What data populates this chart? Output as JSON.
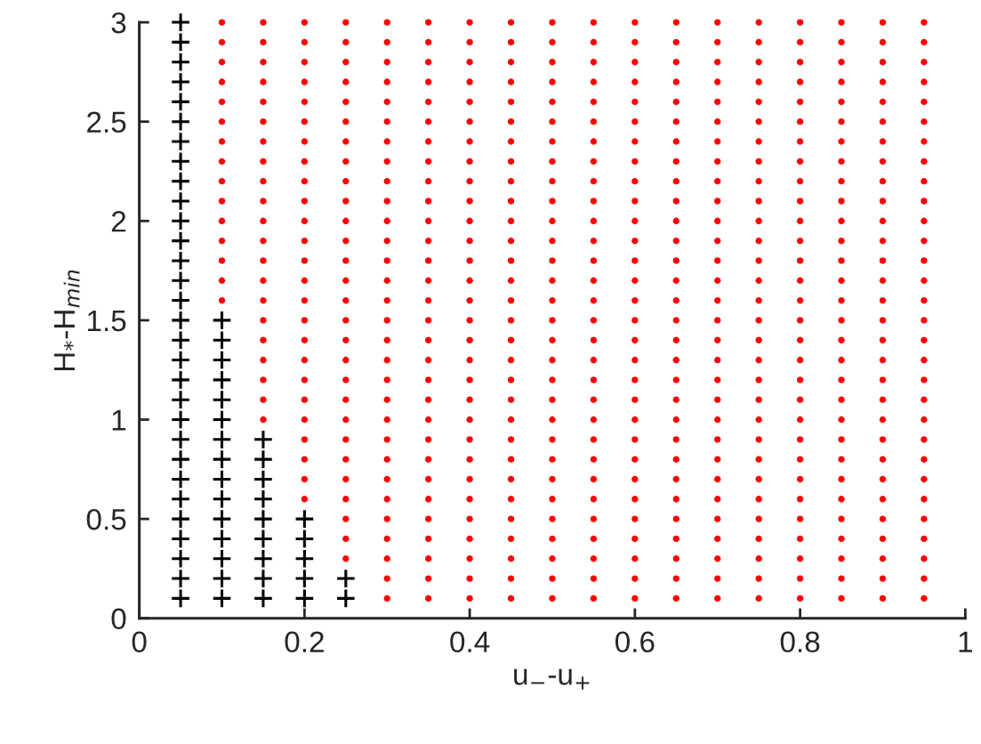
{
  "chart_data": {
    "type": "scatter",
    "xlabel": "u$_{−}$-u$_{+}$",
    "ylabel": "H$_{*}$-H$_{min}$",
    "xlim": [
      0,
      1
    ],
    "xticks": [
      0,
      0.2,
      0.4,
      0.6,
      0.8,
      1
    ],
    "ylim": [
      0,
      3
    ],
    "yticks": [
      0,
      0.5,
      1,
      1.5,
      2,
      2.5,
      3
    ],
    "grid": false,
    "legend": false,
    "series": [
      {
        "marker": "cross",
        "color": "#000000",
        "x": [
          0.05,
          0.05,
          0.05,
          0.05,
          0.05,
          0.05,
          0.05,
          0.05,
          0.05,
          0.05,
          0.05,
          0.05,
          0.05,
          0.05,
          0.05,
          0.05,
          0.05,
          0.05,
          0.05,
          0.05,
          0.05,
          0.05,
          0.05,
          0.05,
          0.05,
          0.05,
          0.05,
          0.05,
          0.05,
          0.05,
          0.1,
          0.1,
          0.1,
          0.1,
          0.1,
          0.1,
          0.1,
          0.1,
          0.1,
          0.1,
          0.1,
          0.1,
          0.1,
          0.1,
          0.1,
          0.15,
          0.15,
          0.15,
          0.15,
          0.15,
          0.15,
          0.15,
          0.15,
          0.15,
          0.2,
          0.2,
          0.2,
          0.2,
          0.2,
          0.25,
          0.25
        ],
        "values": [
          0.1,
          0.2,
          0.3,
          0.4,
          0.5,
          0.6,
          0.7,
          0.8,
          0.9,
          1,
          1.1,
          1.2,
          1.3,
          1.4,
          1.5,
          1.6,
          1.7,
          1.8,
          1.9,
          2,
          2.1,
          2.2,
          2.3,
          2.4,
          2.5,
          2.6,
          2.7,
          2.8,
          2.9,
          3,
          0.1,
          0.2,
          0.3,
          0.4,
          0.5,
          0.6,
          0.7,
          0.8,
          0.9,
          1,
          1.1,
          1.2,
          1.3,
          1.4,
          1.5,
          0.1,
          0.2,
          0.3,
          0.4,
          0.5,
          0.6,
          0.7,
          0.8,
          0.9,
          0.1,
          0.2,
          0.3,
          0.4,
          0.5,
          0.1,
          0.2
        ]
      },
      {
        "marker": "circle",
        "color": "#ff0000",
        "x": [
          0.1,
          0.1,
          0.1,
          0.1,
          0.1,
          0.1,
          0.1,
          0.1,
          0.1,
          0.1,
          0.1,
          0.1,
          0.1,
          0.1,
          0.1,
          0.15,
          0.15,
          0.15,
          0.15,
          0.15,
          0.15,
          0.15,
          0.15,
          0.15,
          0.15,
          0.15,
          0.15,
          0.15,
          0.15,
          0.15,
          0.15,
          0.15,
          0.15,
          0.15,
          0.15,
          0.15,
          0.2,
          0.2,
          0.2,
          0.2,
          0.2,
          0.2,
          0.2,
          0.2,
          0.2,
          0.2,
          0.2,
          0.2,
          0.2,
          0.2,
          0.2,
          0.2,
          0.2,
          0.2,
          0.2,
          0.2,
          0.2,
          0.2,
          0.2,
          0.2,
          0.2,
          0.25,
          0.25,
          0.25,
          0.25,
          0.25,
          0.25,
          0.25,
          0.25,
          0.25,
          0.25,
          0.25,
          0.25,
          0.25,
          0.25,
          0.25,
          0.25,
          0.25,
          0.25,
          0.25,
          0.25,
          0.25,
          0.25,
          0.25,
          0.25,
          0.25,
          0.25,
          0.25,
          0.25,
          0.3,
          0.3,
          0.3,
          0.3,
          0.3,
          0.3,
          0.3,
          0.3,
          0.3,
          0.3,
          0.3,
          0.3,
          0.3,
          0.3,
          0.3,
          0.3,
          0.3,
          0.3,
          0.3,
          0.3,
          0.3,
          0.3,
          0.3,
          0.3,
          0.3,
          0.3,
          0.3,
          0.3,
          0.3,
          0.3,
          0.35,
          0.35,
          0.35,
          0.35,
          0.35,
          0.35,
          0.35,
          0.35,
          0.35,
          0.35,
          0.35,
          0.35,
          0.35,
          0.35,
          0.35,
          0.35,
          0.35,
          0.35,
          0.35,
          0.35,
          0.35,
          0.35,
          0.35,
          0.35,
          0.35,
          0.35,
          0.35,
          0.35,
          0.35,
          0.35,
          0.4,
          0.4,
          0.4,
          0.4,
          0.4,
          0.4,
          0.4,
          0.4,
          0.4,
          0.4,
          0.4,
          0.4,
          0.4,
          0.4,
          0.4,
          0.4,
          0.4,
          0.4,
          0.4,
          0.4,
          0.4,
          0.4,
          0.4,
          0.4,
          0.4,
          0.4,
          0.4,
          0.4,
          0.4,
          0.4,
          0.45,
          0.45,
          0.45,
          0.45,
          0.45,
          0.45,
          0.45,
          0.45,
          0.45,
          0.45,
          0.45,
          0.45,
          0.45,
          0.45,
          0.45,
          0.45,
          0.45,
          0.45,
          0.45,
          0.45,
          0.45,
          0.45,
          0.45,
          0.45,
          0.45,
          0.45,
          0.45,
          0.45,
          0.45,
          0.45,
          0.5,
          0.5,
          0.5,
          0.5,
          0.5,
          0.5,
          0.5,
          0.5,
          0.5,
          0.5,
          0.5,
          0.5,
          0.5,
          0.5,
          0.5,
          0.5,
          0.5,
          0.5,
          0.5,
          0.5,
          0.5,
          0.5,
          0.5,
          0.5,
          0.5,
          0.5,
          0.5,
          0.5,
          0.5,
          0.5,
          0.55,
          0.55,
          0.55,
          0.55,
          0.55,
          0.55,
          0.55,
          0.55,
          0.55,
          0.55,
          0.55,
          0.55,
          0.55,
          0.55,
          0.55,
          0.55,
          0.55,
          0.55,
          0.55,
          0.55,
          0.55,
          0.55,
          0.55,
          0.55,
          0.55,
          0.55,
          0.55,
          0.55,
          0.55,
          0.55,
          0.6,
          0.6,
          0.6,
          0.6,
          0.6,
          0.6,
          0.6,
          0.6,
          0.6,
          0.6,
          0.6,
          0.6,
          0.6,
          0.6,
          0.6,
          0.6,
          0.6,
          0.6,
          0.6,
          0.6,
          0.6,
          0.6,
          0.6,
          0.6,
          0.6,
          0.6,
          0.6,
          0.6,
          0.6,
          0.6,
          0.65,
          0.65,
          0.65,
          0.65,
          0.65,
          0.65,
          0.65,
          0.65,
          0.65,
          0.65,
          0.65,
          0.65,
          0.65,
          0.65,
          0.65,
          0.65,
          0.65,
          0.65,
          0.65,
          0.65,
          0.65,
          0.65,
          0.65,
          0.65,
          0.65,
          0.65,
          0.65,
          0.65,
          0.65,
          0.65,
          0.7,
          0.7,
          0.7,
          0.7,
          0.7,
          0.7,
          0.7,
          0.7,
          0.7,
          0.7,
          0.7,
          0.7,
          0.7,
          0.7,
          0.7,
          0.7,
          0.7,
          0.7,
          0.7,
          0.7,
          0.7,
          0.7,
          0.7,
          0.7,
          0.7,
          0.7,
          0.7,
          0.7,
          0.7,
          0.7,
          0.75,
          0.75,
          0.75,
          0.75,
          0.75,
          0.75,
          0.75,
          0.75,
          0.75,
          0.75,
          0.75,
          0.75,
          0.75,
          0.75,
          0.75,
          0.75,
          0.75,
          0.75,
          0.75,
          0.75,
          0.75,
          0.75,
          0.75,
          0.75,
          0.75,
          0.75,
          0.75,
          0.75,
          0.75,
          0.75,
          0.8,
          0.8,
          0.8,
          0.8,
          0.8,
          0.8,
          0.8,
          0.8,
          0.8,
          0.8,
          0.8,
          0.8,
          0.8,
          0.8,
          0.8,
          0.8,
          0.8,
          0.8,
          0.8,
          0.8,
          0.8,
          0.8,
          0.8,
          0.8,
          0.8,
          0.8,
          0.8,
          0.8,
          0.8,
          0.8,
          0.85,
          0.85,
          0.85,
          0.85,
          0.85,
          0.85,
          0.85,
          0.85,
          0.85,
          0.85,
          0.85,
          0.85,
          0.85,
          0.85,
          0.85,
          0.85,
          0.85,
          0.85,
          0.85,
          0.85,
          0.85,
          0.85,
          0.85,
          0.85,
          0.85,
          0.85,
          0.85,
          0.85,
          0.85,
          0.85,
          0.9,
          0.9,
          0.9,
          0.9,
          0.9,
          0.9,
          0.9,
          0.9,
          0.9,
          0.9,
          0.9,
          0.9,
          0.9,
          0.9,
          0.9,
          0.9,
          0.9,
          0.9,
          0.9,
          0.9,
          0.9,
          0.9,
          0.9,
          0.9,
          0.9,
          0.9,
          0.9,
          0.9,
          0.9,
          0.9,
          0.95,
          0.95,
          0.95,
          0.95,
          0.95,
          0.95,
          0.95,
          0.95,
          0.95,
          0.95,
          0.95,
          0.95,
          0.95,
          0.95,
          0.95,
          0.95,
          0.95,
          0.95,
          0.95,
          0.95,
          0.95,
          0.95,
          0.95,
          0.95,
          0.95,
          0.95,
          0.95,
          0.95,
          0.95,
          0.95
        ],
        "values": [
          1.6,
          1.7,
          1.8,
          1.9,
          2,
          2.1,
          2.2,
          2.3,
          2.4,
          2.5,
          2.6,
          2.7,
          2.8,
          2.9,
          3,
          1,
          1.1,
          1.2,
          1.3,
          1.4,
          1.5,
          1.6,
          1.7,
          1.8,
          1.9,
          2,
          2.1,
          2.2,
          2.3,
          2.4,
          2.5,
          2.6,
          2.7,
          2.8,
          2.9,
          3,
          0.6,
          0.7,
          0.8,
          0.9,
          1,
          1.1,
          1.2,
          1.3,
          1.4,
          1.5,
          1.6,
          1.7,
          1.8,
          1.9,
          2,
          2.1,
          2.2,
          2.3,
          2.4,
          2.5,
          2.6,
          2.7,
          2.8,
          2.9,
          3,
          0.3,
          0.4,
          0.5,
          0.6,
          0.7,
          0.8,
          0.9,
          1,
          1.1,
          1.2,
          1.3,
          1.4,
          1.5,
          1.6,
          1.7,
          1.8,
          1.9,
          2,
          2.1,
          2.2,
          2.3,
          2.4,
          2.5,
          2.6,
          2.7,
          2.8,
          2.9,
          3,
          0.1,
          0.2,
          0.3,
          0.4,
          0.5,
          0.6,
          0.7,
          0.8,
          0.9,
          1,
          1.1,
          1.2,
          1.3,
          1.4,
          1.5,
          1.6,
          1.7,
          1.8,
          1.9,
          2,
          2.1,
          2.2,
          2.3,
          2.4,
          2.5,
          2.6,
          2.7,
          2.8,
          2.9,
          3,
          0.1,
          0.2,
          0.3,
          0.4,
          0.5,
          0.6,
          0.7,
          0.8,
          0.9,
          1,
          1.1,
          1.2,
          1.3,
          1.4,
          1.5,
          1.6,
          1.7,
          1.8,
          1.9,
          2,
          2.1,
          2.2,
          2.3,
          2.4,
          2.5,
          2.6,
          2.7,
          2.8,
          2.9,
          3,
          0.1,
          0.2,
          0.3,
          0.4,
          0.5,
          0.6,
          0.7,
          0.8,
          0.9,
          1,
          1.1,
          1.2,
          1.3,
          1.4,
          1.5,
          1.6,
          1.7,
          1.8,
          1.9,
          2,
          2.1,
          2.2,
          2.3,
          2.4,
          2.5,
          2.6,
          2.7,
          2.8,
          2.9,
          3,
          0.1,
          0.2,
          0.3,
          0.4,
          0.5,
          0.6,
          0.7,
          0.8,
          0.9,
          1,
          1.1,
          1.2,
          1.3,
          1.4,
          1.5,
          1.6,
          1.7,
          1.8,
          1.9,
          2,
          2.1,
          2.2,
          2.3,
          2.4,
          2.5,
          2.6,
          2.7,
          2.8,
          2.9,
          3,
          0.1,
          0.2,
          0.3,
          0.4,
          0.5,
          0.6,
          0.7,
          0.8,
          0.9,
          1,
          1.1,
          1.2,
          1.3,
          1.4,
          1.5,
          1.6,
          1.7,
          1.8,
          1.9,
          2,
          2.1,
          2.2,
          2.3,
          2.4,
          2.5,
          2.6,
          2.7,
          2.8,
          2.9,
          3,
          0.1,
          0.2,
          0.3,
          0.4,
          0.5,
          0.6,
          0.7,
          0.8,
          0.9,
          1,
          1.1,
          1.2,
          1.3,
          1.4,
          1.5,
          1.6,
          1.7,
          1.8,
          1.9,
          2,
          2.1,
          2.2,
          2.3,
          2.4,
          2.5,
          2.6,
          2.7,
          2.8,
          2.9,
          3,
          0.1,
          0.2,
          0.3,
          0.4,
          0.5,
          0.6,
          0.7,
          0.8,
          0.9,
          1,
          1.1,
          1.2,
          1.3,
          1.4,
          1.5,
          1.6,
          1.7,
          1.8,
          1.9,
          2,
          2.1,
          2.2,
          2.3,
          2.4,
          2.5,
          2.6,
          2.7,
          2.8,
          2.9,
          3,
          0.1,
          0.2,
          0.3,
          0.4,
          0.5,
          0.6,
          0.7,
          0.8,
          0.9,
          1,
          1.1,
          1.2,
          1.3,
          1.4,
          1.5,
          1.6,
          1.7,
          1.8,
          1.9,
          2,
          2.1,
          2.2,
          2.3,
          2.4,
          2.5,
          2.6,
          2.7,
          2.8,
          2.9,
          3,
          0.1,
          0.2,
          0.3,
          0.4,
          0.5,
          0.6,
          0.7,
          0.8,
          0.9,
          1,
          1.1,
          1.2,
          1.3,
          1.4,
          1.5,
          1.6,
          1.7,
          1.8,
          1.9,
          2,
          2.1,
          2.2,
          2.3,
          2.4,
          2.5,
          2.6,
          2.7,
          2.8,
          2.9,
          3,
          0.1,
          0.2,
          0.3,
          0.4,
          0.5,
          0.6,
          0.7,
          0.8,
          0.9,
          1,
          1.1,
          1.2,
          1.3,
          1.4,
          1.5,
          1.6,
          1.7,
          1.8,
          1.9,
          2,
          2.1,
          2.2,
          2.3,
          2.4,
          2.5,
          2.6,
          2.7,
          2.8,
          2.9,
          3,
          0.1,
          0.2,
          0.3,
          0.4,
          0.5,
          0.6,
          0.7,
          0.8,
          0.9,
          1,
          1.1,
          1.2,
          1.3,
          1.4,
          1.5,
          1.6,
          1.7,
          1.8,
          1.9,
          2,
          2.1,
          2.2,
          2.3,
          2.4,
          2.5,
          2.6,
          2.7,
          2.8,
          2.9,
          3,
          0.1,
          0.2,
          0.3,
          0.4,
          0.5,
          0.6,
          0.7,
          0.8,
          0.9,
          1,
          1.1,
          1.2,
          1.3,
          1.4,
          1.5,
          1.6,
          1.7,
          1.8,
          1.9,
          2,
          2.1,
          2.2,
          2.3,
          2.4,
          2.5,
          2.6,
          2.7,
          2.8,
          2.9,
          3,
          0.1,
          0.2,
          0.3,
          0.4,
          0.5,
          0.6,
          0.7,
          0.8,
          0.9,
          1,
          1.1,
          1.2,
          1.3,
          1.4,
          1.5,
          1.6,
          1.7,
          1.8,
          1.9,
          2,
          2.1,
          2.2,
          2.3,
          2.4,
          2.5,
          2.6,
          2.7,
          2.8,
          2.9,
          3,
          0.1,
          0.2,
          0.3,
          0.4,
          0.5,
          0.6,
          0.7,
          0.8,
          0.9,
          1,
          1.1,
          1.2,
          1.3,
          1.4,
          1.5,
          1.6,
          1.7,
          1.8,
          1.9,
          2,
          2.1,
          2.2,
          2.3,
          2.4,
          2.5,
          2.6,
          2.7,
          2.8,
          2.9,
          3
        ]
      }
    ]
  }
}
